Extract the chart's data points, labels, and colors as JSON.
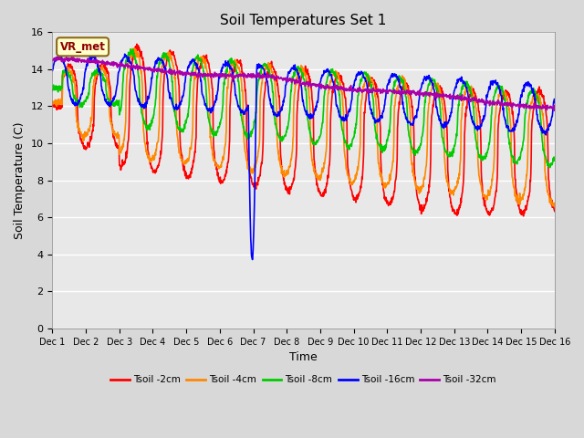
{
  "title": "Soil Temperatures Set 1",
  "xlabel": "Time",
  "ylabel": "Soil Temperature (C)",
  "ylim": [
    0,
    16
  ],
  "yticks": [
    0,
    2,
    4,
    6,
    8,
    10,
    12,
    14,
    16
  ],
  "fig_bg_color": "#d8d8d8",
  "axes_bg_color": "#e8e8e8",
  "annotation_text": "VR_met",
  "annotation_box_color": "#ffffcc",
  "annotation_box_edge": "#8b6914",
  "series_names": [
    "Tsoil -2cm",
    "Tsoil -4cm",
    "Tsoil -8cm",
    "Tsoil -16cm",
    "Tsoil -32cm"
  ],
  "series_colors": [
    "#ff0000",
    "#ff8800",
    "#00cc00",
    "#0000ff",
    "#aa00aa"
  ],
  "series_lw": [
    1.2,
    1.2,
    1.2,
    1.2,
    1.2
  ],
  "xtick_labels": [
    "Dec 1",
    "Dec 2",
    "Dec 3",
    "Dec 4",
    "Dec 5",
    "Dec 6",
    "Dec 7",
    "Dec 8",
    "Dec 9",
    "Dec 10",
    "Dec 11",
    "Dec 12",
    "Dec 13",
    "Dec 14",
    "Dec 15",
    "Dec 16"
  ],
  "n_points": 1500
}
